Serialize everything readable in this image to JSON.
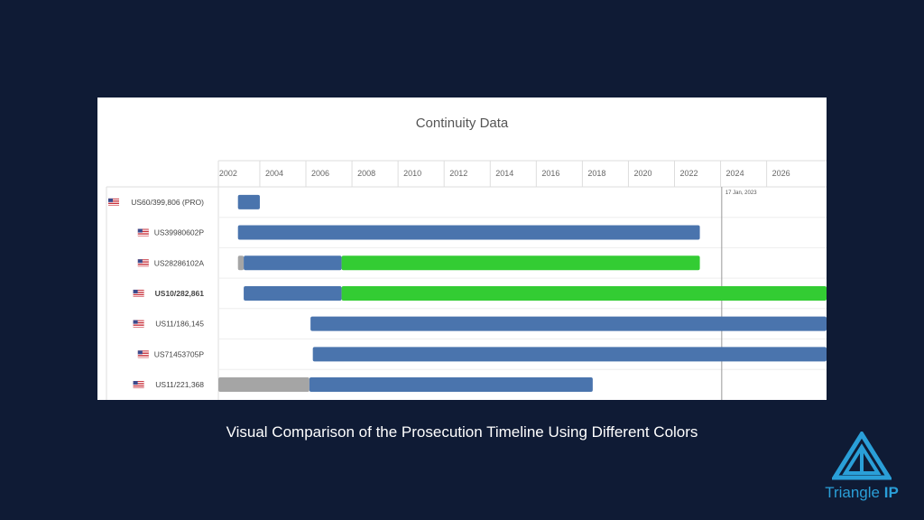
{
  "caption": "Visual Comparison of the Prosecution Timeline Using Different Colors",
  "logo": {
    "name": "Triangle",
    "suffix": "IP",
    "color": "#2a9fd8"
  },
  "chart_data": {
    "type": "gantt",
    "title": "Continuity Data",
    "x_ticks": [
      "2002",
      "2004",
      "2006",
      "2008",
      "2010",
      "2012",
      "2014",
      "2016",
      "2018",
      "2020",
      "2022",
      "2024",
      "2026"
    ],
    "xlim": [
      2001.2,
      2027.6
    ],
    "grid": true,
    "marker": {
      "label": "17 Jan, 2023",
      "x": 2023.05
    },
    "colors": {
      "blue": "#4a74ad",
      "green": "#33cc33",
      "gray": "#a5a5a5"
    },
    "rows": [
      {
        "label": "US60/399,806 (PRO)",
        "bold": false,
        "segments": [
          {
            "start": 2002.05,
            "end": 2003.0,
            "color": "blue"
          }
        ]
      },
      {
        "label": "US39980602P",
        "bold": false,
        "segments": [
          {
            "start": 2002.05,
            "end": 2022.1,
            "color": "blue"
          }
        ]
      },
      {
        "label": "US28286102A",
        "bold": false,
        "segments": [
          {
            "start": 2002.05,
            "end": 2002.3,
            "color": "gray"
          },
          {
            "start": 2002.3,
            "end": 2006.55,
            "color": "blue"
          },
          {
            "start": 2006.55,
            "end": 2022.1,
            "color": "green"
          }
        ]
      },
      {
        "label": "US10/282,861",
        "bold": true,
        "segments": [
          {
            "start": 2002.3,
            "end": 2006.55,
            "color": "blue"
          },
          {
            "start": 2006.55,
            "end": 2027.6,
            "color": "green"
          }
        ]
      },
      {
        "label": "US11/186,145",
        "bold": false,
        "segments": [
          {
            "start": 2005.2,
            "end": 2027.6,
            "color": "blue"
          }
        ]
      },
      {
        "label": "US71453705P",
        "bold": false,
        "segments": [
          {
            "start": 2005.3,
            "end": 2027.6,
            "color": "blue"
          }
        ]
      },
      {
        "label": "US11/221,368",
        "bold": false,
        "segments": [
          {
            "start": 2001.2,
            "end": 2005.15,
            "color": "gray"
          },
          {
            "start": 2005.15,
            "end": 2017.45,
            "color": "blue"
          }
        ]
      }
    ]
  }
}
